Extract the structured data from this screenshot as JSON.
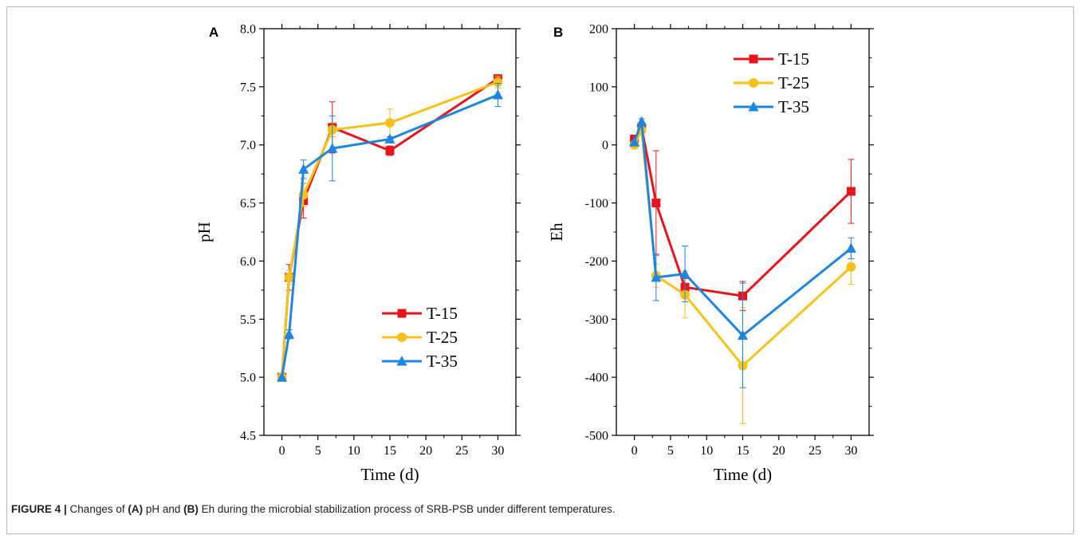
{
  "caption": {
    "label": "FIGURE 4 |",
    "t1": " Changes of ",
    "refA": "(A)",
    "t2": " pH and ",
    "refB": "(B)",
    "t3": " Eh during the microbial stabilization process of SRB-PSB under different temperatures."
  },
  "colors": {
    "T-15": "#e8141b",
    "T-25": "#f5c21b",
    "T-35": "#1f86e0"
  },
  "chart_data": [
    {
      "panel": "A",
      "type": "line",
      "xlabel": "Time (d)",
      "ylabel": "pH",
      "xlim": [
        -2.5,
        32.5
      ],
      "ylim": [
        4.5,
        8.0
      ],
      "xticks": [
        0,
        5,
        10,
        15,
        20,
        25,
        30
      ],
      "yticks": [
        4.5,
        5.0,
        5.5,
        6.0,
        6.5,
        7.0,
        7.5,
        8.0
      ],
      "ytick_labels": [
        "4.5",
        "5.0",
        "5.5",
        "6.0",
        "6.5",
        "7.0",
        "7.5",
        "8.0"
      ],
      "x": [
        0,
        1,
        3,
        7,
        15,
        30
      ],
      "legend_position": "bottom-right",
      "series": [
        {
          "name": "T-15",
          "marker": "square",
          "values": [
            5.0,
            5.86,
            6.52,
            7.15,
            6.95,
            7.57
          ],
          "errors": [
            0.0,
            0.11,
            0.15,
            0.22,
            0.04,
            0.02
          ]
        },
        {
          "name": "T-25",
          "marker": "circle",
          "values": [
            5.0,
            5.86,
            6.57,
            7.13,
            7.19,
            7.54
          ],
          "errors": [
            0.0,
            0.06,
            0.1,
            0.06,
            0.12,
            0.05
          ]
        },
        {
          "name": "T-35",
          "marker": "triangle",
          "values": [
            5.0,
            5.37,
            6.79,
            6.97,
            7.05,
            7.43
          ],
          "errors": [
            0.0,
            0.04,
            0.08,
            0.28,
            0.02,
            0.1
          ]
        }
      ]
    },
    {
      "panel": "B",
      "type": "line",
      "xlabel": "Time (d)",
      "ylabel": "Eh",
      "xlim": [
        -2.5,
        32.5
      ],
      "ylim": [
        -500,
        200
      ],
      "xticks": [
        0,
        5,
        10,
        15,
        20,
        25,
        30
      ],
      "yticks": [
        -500,
        -400,
        -300,
        -200,
        -100,
        0,
        100,
        200
      ],
      "ytick_labels": [
        "-500",
        "-400",
        "-300",
        "-200",
        "-100",
        "0",
        "100",
        "200"
      ],
      "x": [
        0,
        1,
        3,
        7,
        15,
        30
      ],
      "legend_position": "top-right",
      "series": [
        {
          "name": "T-15",
          "marker": "square",
          "values": [
            10,
            30,
            -100,
            -245,
            -260,
            -80
          ],
          "errors": [
            0,
            5,
            90,
            15,
            25,
            55
          ]
        },
        {
          "name": "T-25",
          "marker": "circle",
          "values": [
            0,
            25,
            -225,
            -258,
            -380,
            -210
          ],
          "errors": [
            0,
            5,
            20,
            40,
            100,
            30
          ]
        },
        {
          "name": "T-35",
          "marker": "triangle",
          "values": [
            5,
            40,
            -228,
            -222,
            -328,
            -178
          ],
          "errors": [
            0,
            5,
            40,
            48,
            90,
            18
          ]
        }
      ]
    }
  ]
}
